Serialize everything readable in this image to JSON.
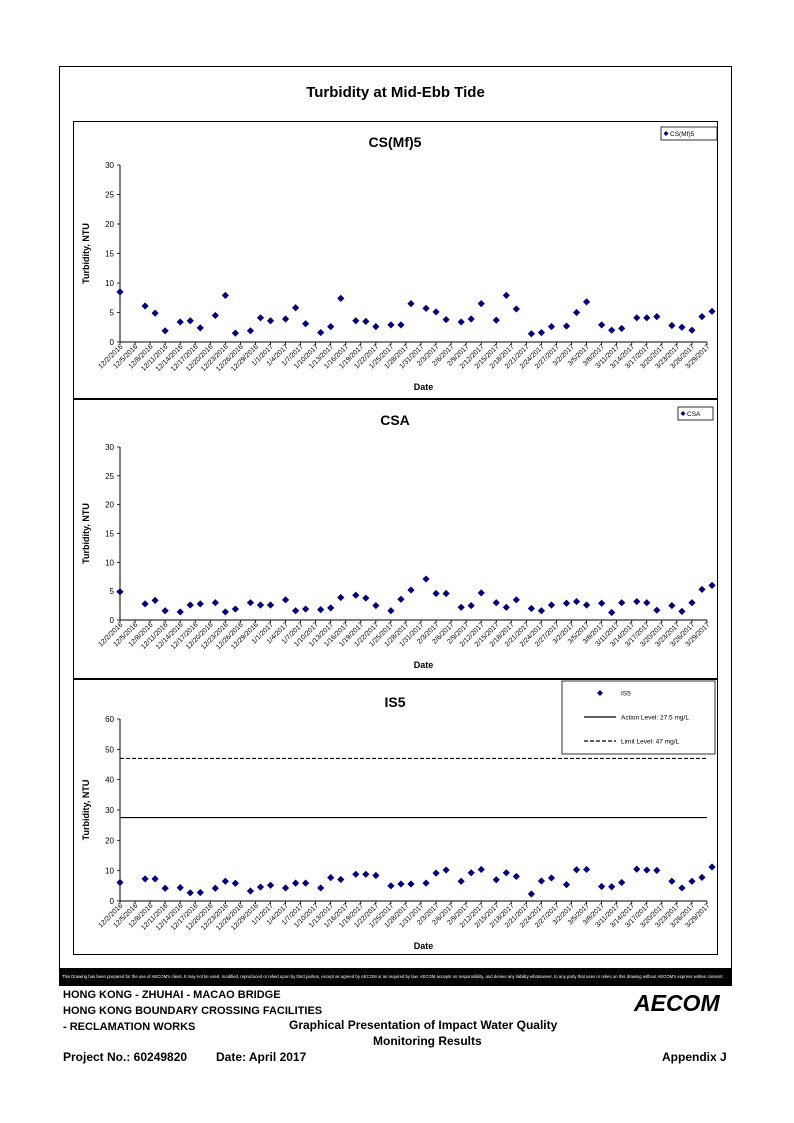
{
  "page_title": "Turbidity at Mid-Ebb Tide",
  "dates": [
    "12/2/2016",
    "12/5/2016",
    "12/8/2016",
    "12/11/2016",
    "12/14/2016",
    "12/17/2016",
    "12/20/2016",
    "12/23/2016",
    "12/26/2016",
    "12/29/2016",
    "1/1/2017",
    "1/4/2017",
    "1/7/2017",
    "1/10/2017",
    "1/13/2017",
    "1/16/2017",
    "1/19/2017",
    "1/22/2017",
    "1/25/2017",
    "1/28/2017",
    "1/31/2017",
    "2/3/2017",
    "2/6/2017",
    "2/9/2017",
    "2/12/2017",
    "2/15/2017",
    "2/18/2017",
    "2/21/2017",
    "2/24/2017",
    "2/27/2017",
    "3/2/2017",
    "3/5/2017",
    "3/8/2017",
    "3/11/2017",
    "3/14/2017",
    "3/17/2017",
    "3/20/2017",
    "3/23/2017",
    "3/26/2017",
    "3/29/2017"
  ],
  "chart_data": [
    {
      "type": "scatter",
      "title": "CS(Mf)5",
      "xlabel": "Date",
      "ylabel": "Turbidity, NTU",
      "ylim": [
        0,
        30
      ],
      "yticks": [
        0,
        5,
        10,
        15,
        20,
        25,
        30
      ],
      "x_range": [
        "12/2/2016",
        "3/29/2017"
      ],
      "legend": "top-right",
      "series": [
        {
          "name": "CS(Mf)5",
          "marker": "diamond",
          "color": "#000080",
          "x": [
            "12/2/2016",
            "12/7/2016",
            "12/9/2016",
            "12/11/2016",
            "12/14/2016",
            "12/16/2016",
            "12/18/2016",
            "12/21/2016",
            "12/23/2016",
            "12/25/2016",
            "12/28/2016",
            "12/30/2016",
            "1/1/2017",
            "1/4/2017",
            "1/6/2017",
            "1/8/2017",
            "1/11/2017",
            "1/13/2017",
            "1/15/2017",
            "1/18/2017",
            "1/20/2017",
            "1/22/2017",
            "1/25/2017",
            "1/27/2017",
            "1/29/2017",
            "2/1/2017",
            "2/3/2017",
            "2/5/2017",
            "2/8/2017",
            "2/10/2017",
            "2/12/2017",
            "2/15/2017",
            "2/17/2017",
            "2/19/2017",
            "2/22/2017",
            "2/24/2017",
            "2/26/2017",
            "3/1/2017",
            "3/3/2017",
            "3/5/2017",
            "3/8/2017",
            "3/10/2017",
            "3/12/2017",
            "3/15/2017",
            "3/17/2017",
            "3/19/2017",
            "3/22/2017",
            "3/24/2017",
            "3/26/2017",
            "3/28/2017",
            "3/30/2017"
          ],
          "y": [
            8.5,
            6.1,
            4.9,
            1.9,
            3.4,
            3.6,
            2.4,
            4.5,
            7.9,
            1.5,
            1.9,
            4.1,
            3.6,
            3.9,
            5.8,
            3.1,
            1.6,
            2.6,
            7.4,
            3.6,
            3.5,
            2.6,
            2.9,
            2.9,
            6.5,
            5.7,
            5.1,
            3.8,
            3.4,
            3.9,
            6.5,
            3.7,
            7.9,
            5.6,
            1.4,
            1.6,
            2.6,
            2.7,
            5.0,
            6.8,
            2.9,
            2.0,
            2.3,
            4.1,
            4.1,
            4.3,
            2.8,
            2.5,
            2.0,
            4.3,
            5.2
          ]
        }
      ]
    },
    {
      "type": "scatter",
      "title": "CSA",
      "xlabel": "Date",
      "ylabel": "Turbidity, NTU",
      "ylim": [
        0,
        30
      ],
      "yticks": [
        0,
        5,
        10,
        15,
        20,
        25,
        30
      ],
      "x_range": [
        "12/2/2016",
        "3/29/2017"
      ],
      "legend": "top-right",
      "series": [
        {
          "name": "CSA",
          "marker": "diamond",
          "color": "#000080",
          "x": [
            "12/2/2016",
            "12/7/2016",
            "12/9/2016",
            "12/11/2016",
            "12/14/2016",
            "12/16/2016",
            "12/18/2016",
            "12/21/2016",
            "12/23/2016",
            "12/25/2016",
            "12/28/2016",
            "12/30/2016",
            "1/1/2017",
            "1/4/2017",
            "1/6/2017",
            "1/8/2017",
            "1/11/2017",
            "1/13/2017",
            "1/15/2017",
            "1/18/2017",
            "1/20/2017",
            "1/22/2017",
            "1/25/2017",
            "1/27/2017",
            "1/29/2017",
            "2/1/2017",
            "2/3/2017",
            "2/5/2017",
            "2/8/2017",
            "2/10/2017",
            "2/12/2017",
            "2/15/2017",
            "2/17/2017",
            "2/19/2017",
            "2/22/2017",
            "2/24/2017",
            "2/26/2017",
            "3/1/2017",
            "3/3/2017",
            "3/5/2017",
            "3/8/2017",
            "3/10/2017",
            "3/12/2017",
            "3/15/2017",
            "3/17/2017",
            "3/19/2017",
            "3/22/2017",
            "3/24/2017",
            "3/26/2017",
            "3/28/2017",
            "3/30/2017"
          ],
          "y": [
            4.9,
            2.8,
            3.4,
            1.6,
            1.4,
            2.6,
            2.8,
            3.0,
            1.4,
            1.9,
            3.0,
            2.6,
            2.6,
            3.5,
            1.6,
            1.9,
            1.8,
            2.1,
            3.9,
            4.3,
            3.8,
            2.5,
            1.6,
            3.6,
            5.2,
            7.1,
            4.6,
            4.6,
            2.2,
            2.5,
            4.7,
            3.0,
            2.2,
            3.5,
            2.0,
            1.6,
            2.6,
            2.9,
            3.2,
            2.6,
            2.9,
            1.3,
            3.0,
            3.2,
            3.0,
            1.7,
            2.5,
            1.5,
            3.0,
            5.3,
            6.0
          ]
        }
      ]
    },
    {
      "type": "scatter",
      "title": "IS5",
      "xlabel": "Date",
      "ylabel": "Turbidity, NTU",
      "ylim": [
        0,
        60
      ],
      "yticks": [
        0,
        10,
        20,
        30,
        40,
        50,
        60
      ],
      "x_range": [
        "12/2/2016",
        "3/29/2017"
      ],
      "legend": "top-right",
      "series": [
        {
          "name": "IS5",
          "marker": "diamond",
          "color": "#000080",
          "x": [
            "12/2/2016",
            "12/7/2016",
            "12/9/2016",
            "12/11/2016",
            "12/14/2016",
            "12/16/2016",
            "12/18/2016",
            "12/21/2016",
            "12/23/2016",
            "12/25/2016",
            "12/28/2016",
            "12/30/2016",
            "1/1/2017",
            "1/4/2017",
            "1/6/2017",
            "1/8/2017",
            "1/11/2017",
            "1/13/2017",
            "1/15/2017",
            "1/18/2017",
            "1/20/2017",
            "1/22/2017",
            "1/25/2017",
            "1/27/2017",
            "1/29/2017",
            "2/1/2017",
            "2/3/2017",
            "2/5/2017",
            "2/8/2017",
            "2/10/2017",
            "2/12/2017",
            "2/15/2017",
            "2/17/2017",
            "2/19/2017",
            "2/22/2017",
            "2/24/2017",
            "2/26/2017",
            "3/1/2017",
            "3/3/2017",
            "3/5/2017",
            "3/8/2017",
            "3/10/2017",
            "3/12/2017",
            "3/15/2017",
            "3/17/2017",
            "3/19/2017",
            "3/22/2017",
            "3/24/2017",
            "3/26/2017",
            "3/28/2017",
            "3/30/2017"
          ],
          "y": [
            6.1,
            7.3,
            7.3,
            4.2,
            4.4,
            2.7,
            2.8,
            4.2,
            6.5,
            5.8,
            3.3,
            4.6,
            5.2,
            4.3,
            5.9,
            5.9,
            4.3,
            7.7,
            7.1,
            8.8,
            8.8,
            8.4,
            5.0,
            5.6,
            5.6,
            5.9,
            9.2,
            10.2,
            6.5,
            9.3,
            10.4,
            7.0,
            9.3,
            8.1,
            2.3,
            6.6,
            7.6,
            5.4,
            10.3,
            10.4,
            4.8,
            4.7,
            6.1,
            10.5,
            10.2,
            10.1,
            6.5,
            4.3,
            6.5,
            7.8,
            11.2
          ]
        },
        {
          "name": "Action Level: 27.5 mg/L",
          "type": "hline",
          "value": 27.5,
          "style": "solid",
          "color": "#000000"
        },
        {
          "name": "Limit Level: 47 mg/L",
          "type": "hline",
          "value": 47,
          "style": "dashed",
          "color": "#000000"
        }
      ]
    }
  ],
  "disclaimer": "This Drawing has been prepared for the use of AECOM's client. It may not be used, modified, reproduced or relied upon by third parties, except as agreed by AECOM or as required by law. AECOM accepts no responsibility, and denies any liability whatsoever, to any party that uses or relies on this drawing without AECOM's express written consent.",
  "footer": {
    "line1": "HONG KONG - ZHUHAI - MACAO BRIDGE",
    "line2": "HONG KONG BOUNDARY CROSSING FACILITIES",
    "line3": "- RECLAMATION WORKS",
    "center_line1": "Graphical Presentation of Impact Water Quality",
    "center_line2": "Monitoring Results",
    "project_no": "Project No.: 60249820",
    "date": "Date: April 2017",
    "appendix": "Appendix J",
    "logo_text": "AECOM"
  }
}
